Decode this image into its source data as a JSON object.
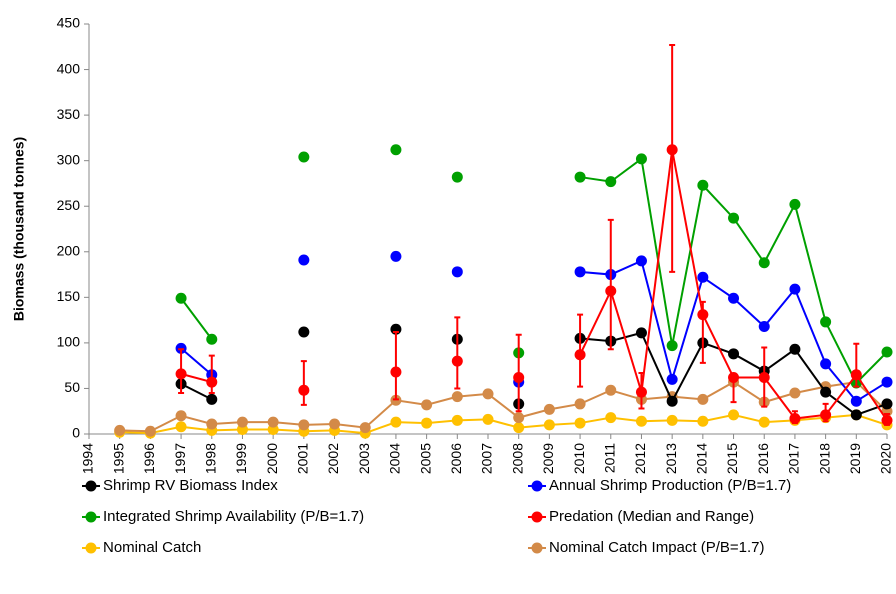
{
  "chart_data": {
    "type": "line",
    "ylabel": "Biomass (thousand tonnes)",
    "x": [
      1994,
      1995,
      1996,
      1997,
      1998,
      1999,
      2000,
      2001,
      2002,
      2003,
      2004,
      2005,
      2006,
      2007,
      2008,
      2009,
      2010,
      2011,
      2012,
      2013,
      2014,
      2015,
      2016,
      2017,
      2018,
      2019,
      2020
    ],
    "xlim": [
      1994,
      2020
    ],
    "xticks": [
      1994,
      1995,
      1996,
      1997,
      1998,
      1999,
      2000,
      2001,
      2002,
      2003,
      2004,
      2005,
      2006,
      2007,
      2008,
      2009,
      2010,
      2011,
      2012,
      2013,
      2014,
      2015,
      2016,
      2017,
      2018,
      2019,
      2020
    ],
    "ylim": [
      0,
      450
    ],
    "yticks": [
      0,
      50,
      100,
      150,
      200,
      250,
      300,
      350,
      400,
      450
    ],
    "grid": false,
    "series": [
      {
        "name": "Nominal Catch",
        "color": "#ffc000",
        "values": [
          null,
          2,
          1,
          8,
          4,
          5,
          5,
          3,
          4,
          1,
          13,
          12,
          15,
          16,
          7,
          10,
          12,
          18,
          14,
          15,
          14,
          21,
          13,
          15,
          18,
          21,
          10
        ]
      },
      {
        "name": "Nominal Catch Impact (P/B=1.7)",
        "color": "#d38a48",
        "values": [
          null,
          4,
          3,
          20,
          11,
          13,
          13,
          10,
          11,
          7,
          37,
          32,
          41,
          44,
          18,
          27,
          33,
          48,
          38,
          41,
          38,
          57,
          35,
          45,
          52,
          57,
          25
        ]
      },
      {
        "name": "Shrimp RV Biomass Index",
        "color": "#000000",
        "values": [
          null,
          null,
          null,
          55,
          38,
          null,
          null,
          112,
          null,
          null,
          115,
          null,
          104,
          null,
          33,
          null,
          105,
          102,
          111,
          36,
          100,
          88,
          69,
          93,
          46,
          21,
          33
        ]
      },
      {
        "name": "Annual Shrimp Production (P/B=1.7)",
        "color": "#0000ff",
        "values": [
          null,
          null,
          null,
          94,
          65,
          null,
          null,
          191,
          null,
          null,
          195,
          null,
          178,
          null,
          57,
          null,
          178,
          175,
          190,
          60,
          172,
          149,
          118,
          159,
          77,
          36,
          57
        ]
      },
      {
        "name": "Integrated Shrimp Availability (P/B=1.7)",
        "color": "#00a000",
        "values": [
          null,
          null,
          null,
          149,
          104,
          null,
          null,
          304,
          null,
          null,
          312,
          null,
          282,
          null,
          89,
          null,
          282,
          277,
          302,
          97,
          273,
          237,
          188,
          252,
          123,
          56,
          90
        ]
      },
      {
        "name": "Predation (Median and Range)",
        "color": "#ff0000",
        "values": [
          null,
          null,
          null,
          66,
          57,
          null,
          null,
          48,
          null,
          null,
          68,
          null,
          80,
          null,
          62,
          null,
          87,
          157,
          46,
          312,
          131,
          62,
          62,
          17,
          21,
          65,
          15
        ],
        "low": [
          null,
          null,
          null,
          45,
          45,
          null,
          null,
          32,
          null,
          null,
          38,
          null,
          50,
          null,
          25,
          null,
          52,
          93,
          28,
          178,
          78,
          35,
          30,
          12,
          14,
          52,
          10
        ],
        "high": [
          null,
          null,
          null,
          93,
          86,
          null,
          null,
          80,
          null,
          null,
          112,
          null,
          128,
          null,
          109,
          null,
          131,
          235,
          67,
          427,
          145,
          64,
          95,
          25,
          33,
          99,
          22
        ]
      }
    ],
    "legend_order": [
      2,
      3,
      4,
      5,
      0,
      1
    ]
  }
}
